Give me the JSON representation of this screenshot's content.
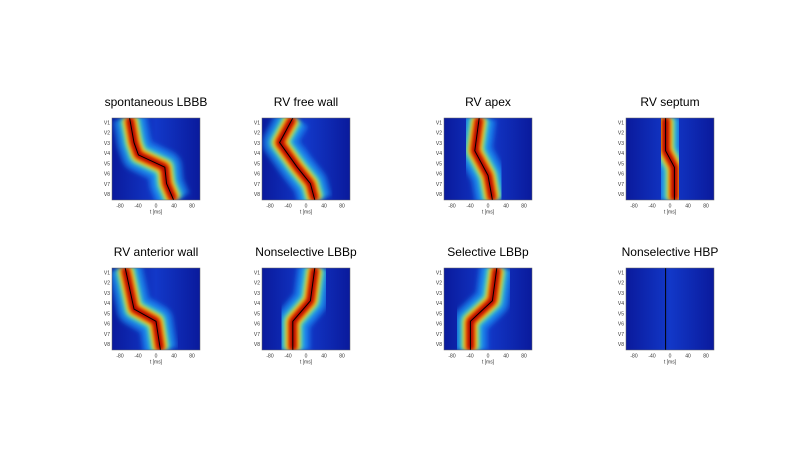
{
  "panels": [
    {
      "title": "spontaneous LBBB"
    },
    {
      "title": "RV free wall"
    },
    {
      "title": "RV apex"
    },
    {
      "title": "RV septum"
    },
    {
      "title": "RV anterior wall"
    },
    {
      "title": "Nonselective LBBp"
    },
    {
      "title": "Selective LBBp"
    },
    {
      "title": "Nonselective HBP"
    }
  ],
  "leads": [
    "V1",
    "V2",
    "V3",
    "V4",
    "V5",
    "V6",
    "V7",
    "V8"
  ],
  "time_ticks": [
    -80,
    -40,
    0,
    40,
    80
  ],
  "time_label": "t [ms]"
}
